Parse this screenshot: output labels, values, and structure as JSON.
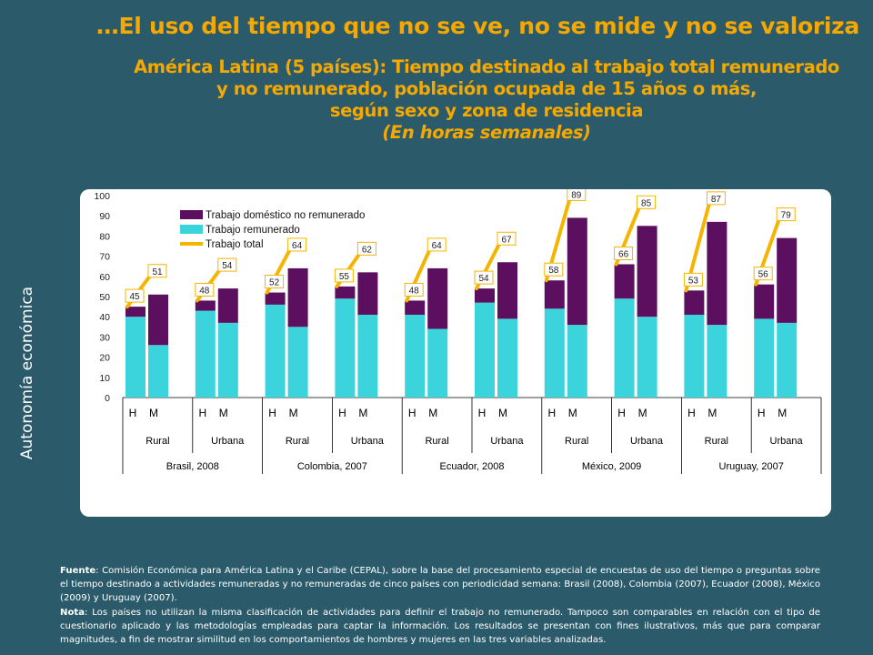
{
  "title": "…El uso del tiempo que no se ve,  no se mide y no se valoriza",
  "subtitle_lines": [
    "América Latina (5 países): Tiempo destinado al trabajo total remunerado",
    "y no remunerado, población ocupada de 15 años o más,",
    "según sexo y zona de residencia"
  ],
  "subtitle_units": "(En horas semanales)",
  "side_label": "Autonomía económica",
  "footnote": {
    "source_label": "Fuente",
    "source_text": ": Comisión Económica para América Latina y el Caribe (CEPAL), sobre la base del procesamiento especial de encuestas de uso del tiempo o preguntas sobre el tiempo destinado a actividades remuneradas y no remuneradas de cinco países con periodicidad semana: Brasil (2008), Colombia (2007), Ecuador (2008), México (2009) y Uruguay  (2007).",
    "note_label": "Nota",
    "note_text": ": Los países no utilizan la misma clasificación de actividades para definir el trabajo no remunerado. Tampoco son comparables en relación con el tipo de cuestionario aplicado y las metodologías empleadas para captar la información. Los resultados se presentan con fines ilustrativos, más que para comparar magnitudes, a fin de mostrar similitud en los comportamientos de hombres y mujeres en las tres variables analizadas."
  },
  "colors": {
    "paid": "#3bd3dc",
    "unpaid": "#5b0f5e",
    "total": "#f5b400",
    "accent": "#f5a800",
    "background": "#2b5b6b"
  },
  "chart_data": {
    "type": "bar",
    "stacked": true,
    "ylim": [
      0,
      100
    ],
    "yticks": [
      "0",
      "10",
      "20",
      "30",
      "40",
      "50",
      "60",
      "70",
      "80",
      "90",
      "100"
    ],
    "sex_labels": [
      "H",
      "M"
    ],
    "legend": [
      {
        "key": "unpaid",
        "label": "Trabajo doméstico no remunerado"
      },
      {
        "key": "paid",
        "label": "Trabajo remunerado"
      },
      {
        "key": "total",
        "label": "Trabajo total"
      }
    ],
    "countries": [
      {
        "name": "Brasil, 2008",
        "groups": [
          {
            "zone": "Rural",
            "H": {
              "paid": 40,
              "unpaid": 5,
              "total": 45
            },
            "M": {
              "paid": 26,
              "unpaid": 25,
              "total": 51
            }
          },
          {
            "zone": "Urbana",
            "H": {
              "paid": 43,
              "unpaid": 5,
              "total": 48
            },
            "M": {
              "paid": 37,
              "unpaid": 17,
              "total": 54
            }
          }
        ]
      },
      {
        "name": "Colombia, 2007",
        "groups": [
          {
            "zone": "Rural",
            "H": {
              "paid": 46,
              "unpaid": 6,
              "total": 52
            },
            "M": {
              "paid": 35,
              "unpaid": 29,
              "total": 64
            }
          },
          {
            "zone": "Urbana",
            "H": {
              "paid": 49,
              "unpaid": 6,
              "total": 55
            },
            "M": {
              "paid": 41,
              "unpaid": 21,
              "total": 62
            }
          }
        ]
      },
      {
        "name": "Ecuador, 2008",
        "groups": [
          {
            "zone": "Rural",
            "H": {
              "paid": 41,
              "unpaid": 7,
              "total": 48
            },
            "M": {
              "paid": 34,
              "unpaid": 30,
              "total": 64
            }
          },
          {
            "zone": "Urbana",
            "H": {
              "paid": 47,
              "unpaid": 7,
              "total": 54
            },
            "M": {
              "paid": 39,
              "unpaid": 28,
              "total": 67
            }
          }
        ]
      },
      {
        "name": "México, 2009",
        "groups": [
          {
            "zone": "Rural",
            "H": {
              "paid": 44,
              "unpaid": 14,
              "total": 58
            },
            "M": {
              "paid": 36,
              "unpaid": 53,
              "total": 89
            }
          },
          {
            "zone": "Urbana",
            "H": {
              "paid": 49,
              "unpaid": 17,
              "total": 66
            },
            "M": {
              "paid": 40,
              "unpaid": 45,
              "total": 85
            }
          }
        ]
      },
      {
        "name": "Uruguay, 2007",
        "groups": [
          {
            "zone": "Rural",
            "H": {
              "paid": 41,
              "unpaid": 12,
              "total": 53
            },
            "M": {
              "paid": 36,
              "unpaid": 51,
              "total": 87
            }
          },
          {
            "zone": "Urbana",
            "H": {
              "paid": 39,
              "unpaid": 17,
              "total": 56
            },
            "M": {
              "paid": 37,
              "unpaid": 42,
              "total": 79
            }
          }
        ]
      }
    ]
  }
}
